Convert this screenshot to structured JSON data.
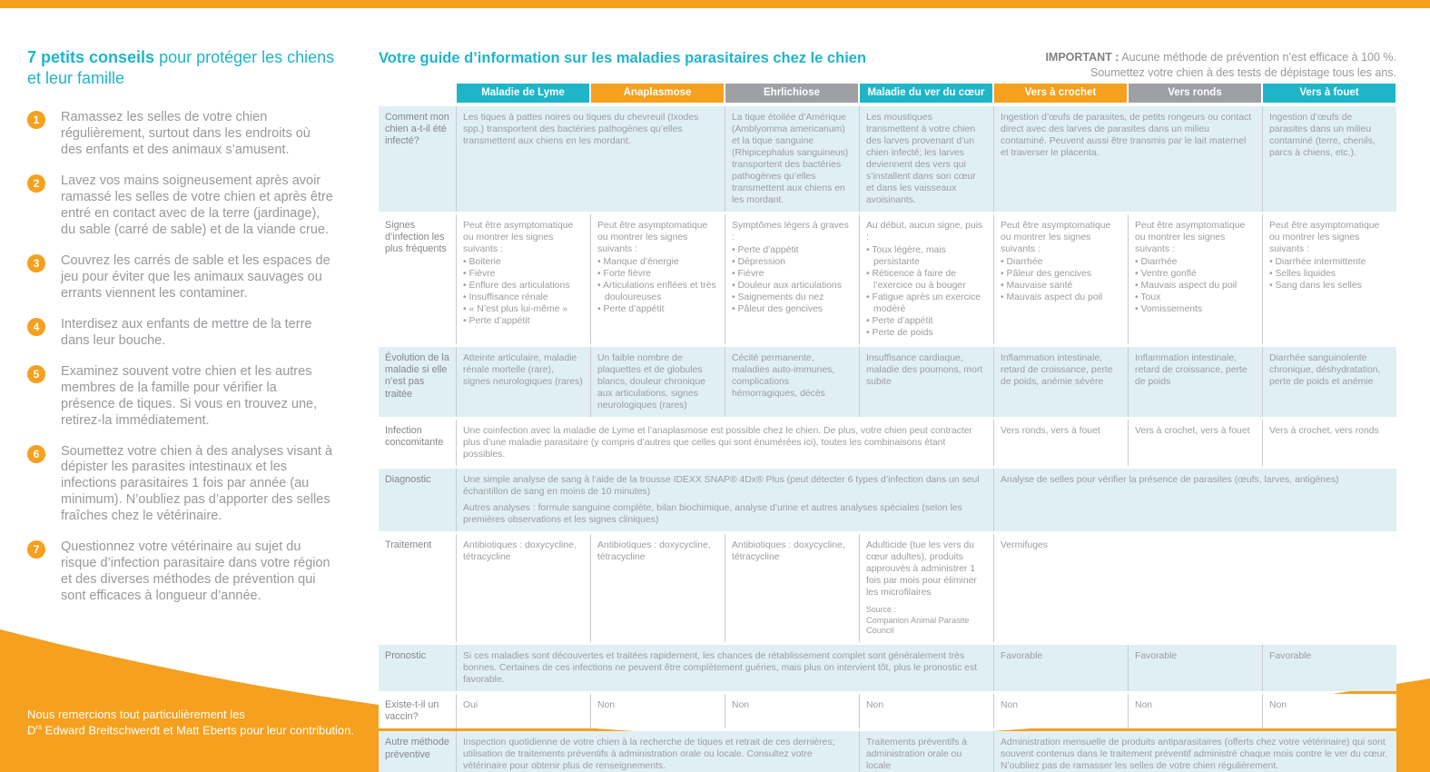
{
  "colors": {
    "teal": "#1FB5C9",
    "orange": "#F5A01E",
    "gray": "#9EA0A3",
    "row_blue": "#E0EFF4"
  },
  "left_panel": {
    "title_bold": "7 petits conseils",
    "title_rest": " pour protéger les chiens",
    "title_line2": "et leur famille",
    "tips": [
      {
        "number": "1",
        "text": "Ramassez les selles de votre chien régulièrement, surtout dans les endroits où des enfants et des animaux s’amusent."
      },
      {
        "number": "2",
        "text": "Lavez vos mains soigneusement après avoir ramassé les selles de votre chien et après être entré en contact avec de la terre (jardinage), du sable (carré de sable) et de la viande crue."
      },
      {
        "number": "3",
        "text": "Couvrez les carrés de sable et les espaces de jeu pour éviter que les animaux sauvages ou errants viennent les contaminer."
      },
      {
        "number": "4",
        "text": "Interdisez aux enfants de mettre de la terre dans leur bouche."
      },
      {
        "number": "5",
        "text": "Examinez souvent votre chien et les autres membres de la famille pour vérifier la présence de tiques. Si vous en trouvez une, retirez-la immédiatement."
      },
      {
        "number": "6",
        "text": "Soumettez votre chien à des analyses visant à dépister les parasites intestinaux et les infections parasitaires 1 fois par année (au minimum). N’oubliez pas d’apporter des selles fraîches chez le vétérinaire."
      },
      {
        "number": "7",
        "text": "Questionnez votre vétérinaire au sujet du risque d’infection parasitaire dans votre région et des diverses méthodes de prévention qui sont efficaces à longueur d’année."
      }
    ]
  },
  "guide": {
    "title": "Votre guide d’information sur les maladies parasitaires chez le chien",
    "important_label": "IMPORTANT :",
    "important_line1": " Aucune méthode de prévention n’est efficace à 100 %.",
    "important_line2": "Soumettez votre chien à des tests de dépistage tous les ans."
  },
  "table": {
    "columns": [
      {
        "label": "Maladie de Lyme",
        "color": "#1FB5C9"
      },
      {
        "label": "Anaplasmose",
        "color": "#F5A01E"
      },
      {
        "label": "Ehrlichiose",
        "color": "#9EA0A3"
      },
      {
        "label": "Maladie du ver du cœur",
        "color": "#1FB5C9"
      },
      {
        "label": "Vers à crochet",
        "color": "#F5A01E"
      },
      {
        "label": "Vers ronds",
        "color": "#9EA0A3"
      },
      {
        "label": "Vers à fouet",
        "color": "#1FB5C9"
      }
    ],
    "rows": [
      {
        "label": "Comment mon chien a-t-il été infecté?",
        "cells": [
          {
            "text": "Les tiques à pattes noires ou tiques du chevreuil (Ixodes spp.) transportent des bactéries pathogènes qu’elles transmettent aux chiens en les mordant."
          },
          {
            "text": "La tique étoilée d’Amérique (Amblyomma americanum) et la tique sanguine (Rhipicephalus sanguineus) transportent des bactéries pathogènes qu’elles transmettent aux chiens en les mordant."
          },
          {
            "text": "Les moustiques transmettent à votre chien des larves provenant d’un chien infecté; les larves deviennent des vers qui s’installent dans son cœur et dans les vaisseaux avoisinants."
          },
          {
            "text": "Ingestion d’œufs de parasites, de petits rongeurs ou contact direct avec des larves de parasites dans un milieu contaminé. Peuvent aussi être transmis par le lait maternel et traverser le placenta."
          },
          {
            "text": "Ingestion d’œufs de parasites dans un milieu contaminé (terre, chenils, parcs à chiens, etc.)."
          }
        ]
      },
      {
        "label": "Signes d’infection les plus fréquents",
        "cells": [
          {
            "intro": "Peut être asymptomatique ou montrer les signes suivants :",
            "bullets": [
              "Boiterie",
              "Fièvre",
              "Enflure des articulations",
              "Insuffisance rénale",
              "« N’est plus lui-même »",
              "Perte d’appétit"
            ]
          },
          {
            "intro": "Peut être asymptomatique ou montrer les signes suivants :",
            "bullets": [
              "Manque d’énergie",
              "Forte fièvre",
              "Articulations enflées et très douloureuses",
              "Perte d’appétit"
            ]
          },
          {
            "intro": "Symptômes légers à graves :",
            "bullets": [
              "Perte d’appétit",
              "Dépression",
              "Fièvre",
              "Douleur aux articulations",
              "Saignements du nez",
              "Pâleur des gencives"
            ]
          },
          {
            "intro": "Au début, aucun signe, puis :",
            "bullets": [
              "Toux légère, mais persistante",
              "Réticence à faire de l’exercice ou à bouger",
              "Fatigue après un exercice modéré",
              "Perte d’appétit",
              "Perte de poids"
            ]
          },
          {
            "intro": "Peut être asymptomatique ou montrer les signes suivants :",
            "bullets": [
              "Diarrhée",
              "Pâleur des gencives",
              "Mauvaise santé",
              "Mauvais aspect du poil"
            ]
          },
          {
            "intro": "Peut être asymptomatique ou montrer les signes suivants :",
            "bullets": [
              "Diarrhée",
              "Ventre gonflé",
              "Mauvais aspect du poil",
              "Toux",
              "Vomissements"
            ]
          },
          {
            "intro": "Peut être asymptomatique ou montrer les signes suivants :",
            "bullets": [
              "Diarrhée intermittente",
              "Selles liquides",
              "Sang dans les selles"
            ]
          }
        ]
      },
      {
        "label": "Évolution de la maladie si elle n’est pas traitée",
        "cells": [
          {
            "text": "Atteinte articulaire, maladie rénale mortelle (rare), signes neurologiques (rares)"
          },
          {
            "text": "Un faible nombre de plaquettes et de globules blancs, douleur chronique aux articulations, signes neurologiques (rares)"
          },
          {
            "text": "Cécité permanente, maladies auto-immunes, complications hémorragiques, décès"
          },
          {
            "text": "Insuffisance cardiaque, maladie des poumons, mort subite"
          },
          {
            "text": "Inflammation intestinale, retard de croissance, perte de poids, anémie sévère"
          },
          {
            "text": "Inflammation intestinale, retard de croissance, perte de poids"
          },
          {
            "text": "Diarrhée sanguinolente chronique, déshydratation, perte de poids et anémie"
          }
        ]
      },
      {
        "label": "Infection concomitante",
        "cells": [
          {
            "text": "Une coinfection avec la maladie de Lyme et l’anaplasmose est possible chez le chien. De plus, votre chien peut contracter plus d’une maladie parasitaire (y compris d’autres que celles qui sont énumérées ici), toutes les combinaisons étant possibles."
          },
          {
            "text": "Vers ronds, vers à fouet"
          },
          {
            "text": "Vers à crochet, vers à fouet"
          },
          {
            "text": "Vers à crochet, vers ronds"
          }
        ]
      },
      {
        "label": "Diagnostic",
        "cells": [
          {
            "paragraphs": [
              "Une simple analyse de sang à l’aide de la trousse IDEXX SNAP® 4Dx® Plus (peut détecter 6 types d’infection dans un seul échantillon de sang en moins de 10 minutes)",
              "Autres analyses : formule sanguine complète, bilan biochimique, analyse d’urine et autres analyses spéciales (selon les premières observations et les signes cliniques)"
            ]
          },
          {
            "text": "Analyse de selles pour vérifier la présence de parasites (œufs, larves, antigènes)"
          }
        ]
      },
      {
        "label": "Traitement",
        "cells": [
          {
            "text": "Antibiotiques : doxycycline, tétracycline"
          },
          {
            "text": "Antibiotiques : doxycycline, tétracycline"
          },
          {
            "text": "Antibiotiques : doxycycline, tétracycline"
          },
          {
            "text": "Adulticide (tue les vers du cœur adultes), produits approuvés à administrer 1 fois par mois pour éliminer les microfilaires",
            "source_label": "Source :",
            "source_text": "Companion Animal Parasite Council"
          },
          {
            "text": "Vermifuges"
          }
        ]
      },
      {
        "label": "Pronostic",
        "cells": [
          {
            "text": "Si ces maladies sont découvertes et traitées rapidement, les chances de rétablissement complet sont généralement très bonnes. Certaines de ces infections ne peuvent être complètement guéries, mais plus on intervient tôt, plus le pronostic est favorable."
          },
          {
            "text": "Favorable"
          },
          {
            "text": "Favorable"
          },
          {
            "text": "Favorable"
          }
        ]
      },
      {
        "label": "Existe-t-il un vaccin?",
        "cells": [
          {
            "text": "Oui"
          },
          {
            "text": "Non"
          },
          {
            "text": "Non"
          },
          {
            "text": "Non"
          },
          {
            "text": "Non"
          },
          {
            "text": "Non"
          },
          {
            "text": "Non"
          }
        ]
      },
      {
        "label": "Autre méthode préventive",
        "cells": [
          {
            "text": "Inspection quotidienne de votre chien à la recherche de tiques et retrait de ces dernières; utilisation de traitements préventifs à administration orale ou locale. Consultez votre vétérinaire pour obtenir plus de renseignements."
          },
          {
            "text": "Traitements préventifs à administration orale ou locale"
          },
          {
            "text": "Administration mensuelle de produits antiparasitaires (offerts chez votre vétérinaire) qui sont souvent contenus dans le traitement préventif administré chaque mois contre le ver du cœur. N’oubliez pas de ramasser les selles de votre chien régulièrement."
          }
        ]
      }
    ]
  },
  "footer": {
    "line1": "Nous remercions tout particulièrement les",
    "line2_prefix": "D",
    "line2_sup": "rs",
    "line2_rest": " Edward Breitschwerdt et Matt Eberts pour leur contribution."
  }
}
